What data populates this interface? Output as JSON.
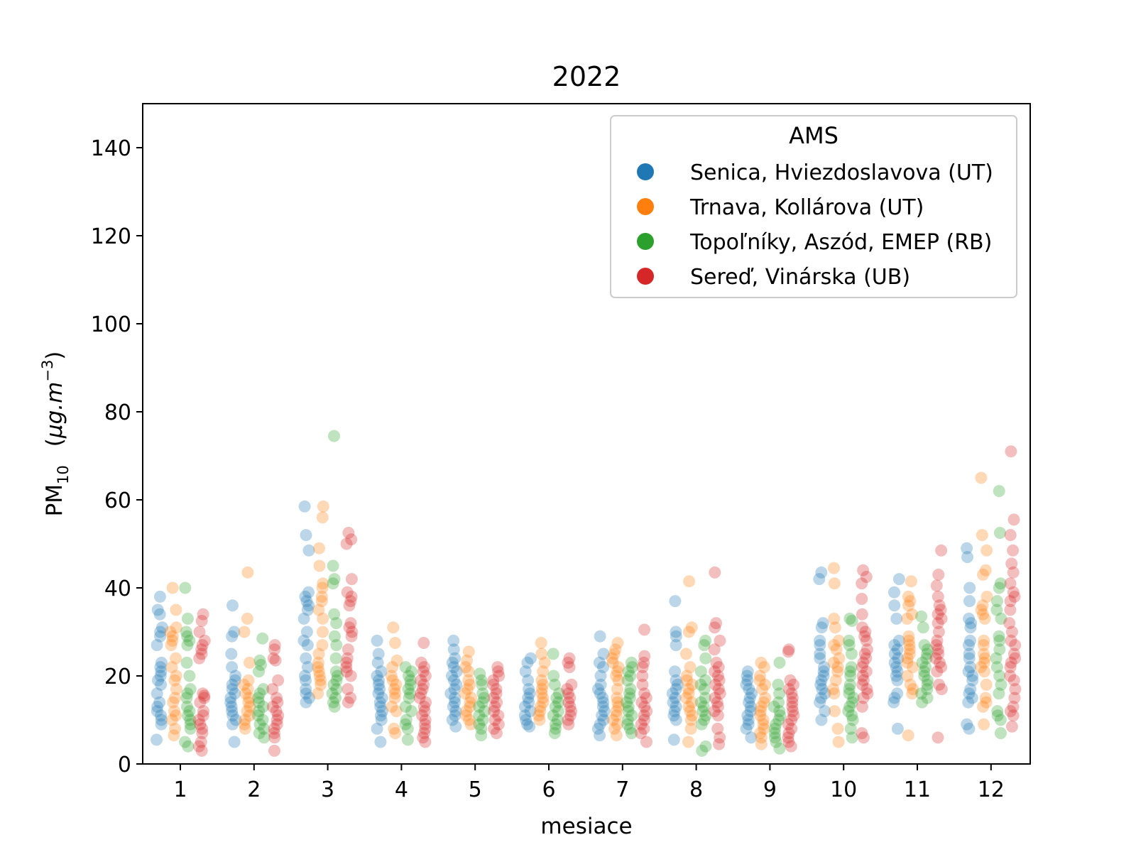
{
  "chart_data": {
    "type": "scatter",
    "title": "2022",
    "xlabel": "mesiace",
    "ylabel": {
      "main": "PM",
      "subscript": "10",
      "unit_open": "(",
      "unit_mu": "μ",
      "unit_body": "g.m",
      "unit_exp": "−3",
      "unit_close": ")"
    },
    "categories": [
      "1",
      "2",
      "3",
      "4",
      "5",
      "6",
      "7",
      "8",
      "9",
      "10",
      "11",
      "12"
    ],
    "ylim": [
      0,
      150
    ],
    "yticks": [
      0,
      20,
      40,
      60,
      80,
      100,
      120,
      140
    ],
    "grid": false,
    "legend": {
      "title": "AMS",
      "placement": "top-right"
    },
    "series": [
      {
        "name": "Senica, Hviezdoslavova (UT)",
        "color": "#1f77b4",
        "values": [
          [
            38,
            35,
            34,
            31,
            30,
            29,
            27,
            23,
            22,
            21,
            20,
            19,
            18,
            16,
            14,
            13,
            12,
            11,
            10,
            9,
            5.5
          ],
          [
            36,
            30,
            29,
            25,
            22,
            20,
            19,
            18,
            17,
            16,
            15,
            14,
            13,
            12,
            11,
            10,
            9,
            5
          ],
          [
            58.5,
            52,
            48.5,
            39,
            38,
            37,
            36,
            35,
            33,
            30,
            28,
            27,
            24,
            22,
            20,
            19,
            17,
            16,
            15,
            14
          ],
          [
            28,
            25,
            23,
            21,
            20,
            19,
            18,
            17,
            16,
            15,
            14,
            13,
            12,
            11,
            10,
            8,
            5
          ],
          [
            28,
            26,
            24,
            23,
            22,
            21,
            20,
            19,
            18,
            17,
            16,
            15,
            14,
            13,
            12,
            11,
            10,
            8.5
          ],
          [
            24,
            23,
            21,
            19,
            17,
            16,
            15,
            14,
            13,
            12,
            11,
            10,
            9,
            8.5
          ],
          [
            29,
            25,
            23,
            22,
            20,
            18,
            17,
            16,
            15,
            14,
            13,
            12,
            11,
            10,
            9,
            8,
            6.5
          ],
          [
            37,
            30,
            29,
            27,
            21,
            19,
            18,
            17,
            16,
            15,
            14,
            13,
            12,
            11,
            10,
            5.5
          ],
          [
            21,
            20,
            19,
            18,
            17,
            16,
            15,
            14,
            13,
            12,
            11,
            10,
            9,
            8,
            6
          ],
          [
            43.5,
            42,
            32,
            31,
            28,
            27,
            25,
            24,
            22,
            21,
            20,
            19,
            18,
            17,
            16,
            15,
            14,
            12,
            10
          ],
          [
            42,
            39,
            36,
            33,
            28,
            27,
            26,
            25,
            24,
            23,
            22,
            21,
            20,
            19,
            16,
            15,
            14,
            8
          ],
          [
            49,
            47,
            40,
            37,
            33,
            32,
            31,
            28,
            27,
            25,
            24,
            22,
            21,
            20,
            19,
            17,
            16,
            15,
            14,
            9,
            8
          ]
        ]
      },
      {
        "name": "Trnava, Kollárova (UT)",
        "color": "#ff7f0e",
        "values": [
          [
            40,
            35,
            31,
            30,
            29,
            28,
            27,
            24,
            22,
            20,
            19,
            17,
            15,
            14,
            12,
            11,
            10,
            8,
            6.5
          ],
          [
            43.5,
            33,
            30,
            23,
            19,
            18,
            17,
            16,
            15,
            14,
            13,
            12,
            11,
            10,
            9,
            8
          ],
          [
            58.5,
            56,
            49,
            45,
            41,
            40,
            38,
            37,
            35,
            33,
            30,
            27,
            25,
            23,
            22,
            21,
            20,
            19,
            18,
            16
          ],
          [
            31,
            27.5,
            23.5,
            22,
            20,
            19,
            18,
            17,
            16,
            15,
            13,
            12,
            8,
            7
          ],
          [
            25.5,
            23.5,
            22,
            21,
            19,
            18,
            17,
            16,
            15,
            14,
            13,
            12,
            11,
            10,
            9
          ],
          [
            27.5,
            25,
            23,
            21,
            19,
            18,
            17,
            16,
            15,
            14,
            13,
            12,
            11,
            10
          ],
          [
            27.5,
            26,
            25,
            24,
            23,
            22,
            21,
            20,
            19,
            17,
            15,
            14,
            13,
            12,
            11,
            10,
            9,
            8,
            6.5
          ],
          [
            41.5,
            31,
            30,
            25,
            22,
            20,
            19,
            18,
            17,
            16,
            15,
            14,
            13,
            12,
            11,
            10,
            8,
            5
          ],
          [
            23,
            22,
            20,
            19,
            18,
            17,
            15,
            14,
            13,
            12,
            11,
            10,
            9,
            8,
            7,
            6,
            4.5
          ],
          [
            44.5,
            41,
            33,
            31,
            28,
            27,
            26,
            24,
            23,
            22,
            21,
            19,
            17,
            16,
            12,
            8,
            5
          ],
          [
            41.5,
            38,
            37,
            36,
            34,
            33,
            29,
            28,
            27,
            26,
            25,
            24,
            23,
            22,
            20,
            18,
            17,
            16,
            6.5
          ],
          [
            65,
            52,
            48.5,
            44,
            43,
            38,
            36,
            35,
            34,
            33,
            28,
            27,
            25,
            24,
            23,
            22,
            21,
            18,
            15,
            14,
            13,
            9
          ]
        ]
      },
      {
        "name": "Topoľníky, Aszód, EMEP (RB)",
        "color": "#2ca02c",
        "values": [
          [
            40,
            33,
            30,
            29,
            28,
            27,
            23,
            20,
            17,
            16,
            15,
            13,
            12,
            11,
            10,
            9,
            8,
            5,
            4
          ],
          [
            28.5,
            23.5,
            22.5,
            21,
            17,
            16,
            15,
            14,
            13,
            12,
            11,
            10,
            9,
            8,
            7,
            6
          ],
          [
            74.5,
            45,
            42,
            41,
            34,
            32,
            29,
            27,
            24,
            21,
            20,
            19,
            18,
            17,
            16,
            15,
            14,
            13
          ],
          [
            22,
            21,
            20,
            19,
            18,
            17,
            16,
            15,
            13,
            12,
            10,
            9,
            8,
            5.5
          ],
          [
            20.5,
            19,
            18,
            16,
            15,
            14,
            13,
            12,
            11,
            10,
            9,
            8,
            6.5
          ],
          [
            25,
            20,
            18,
            16,
            15,
            14,
            13,
            12,
            11,
            10,
            9,
            8,
            7
          ],
          [
            23,
            22,
            21,
            20,
            19,
            17,
            16,
            15,
            14,
            13,
            12,
            11,
            10,
            9,
            8,
            7
          ],
          [
            28,
            27,
            24,
            21,
            19,
            18,
            17,
            15,
            14,
            13,
            12,
            11,
            10,
            9,
            4,
            3
          ],
          [
            23,
            18,
            16,
            14,
            13,
            12,
            11,
            10,
            9,
            8,
            7,
            6,
            5,
            3.5
          ],
          [
            33,
            32.5,
            28,
            27,
            25,
            22,
            21,
            20,
            18,
            17,
            16,
            15,
            14,
            13,
            12,
            11,
            10,
            8,
            6
          ],
          [
            33.5,
            31,
            27,
            26,
            25,
            24,
            23,
            22,
            21,
            20,
            19,
            18,
            17,
            16,
            15,
            14
          ],
          [
            62,
            52.5,
            41,
            40,
            37,
            35,
            33,
            29,
            28,
            26,
            24,
            22,
            20,
            18,
            16,
            12,
            11,
            10,
            7
          ]
        ]
      },
      {
        "name": "Sereď, Vinárska (UB)",
        "color": "#d62728",
        "values": [
          [
            34,
            32.5,
            30,
            28,
            27,
            26,
            25,
            24,
            16,
            15.5,
            15,
            14,
            12,
            11,
            10,
            9,
            8,
            7,
            5,
            4,
            3
          ],
          [
            27,
            26,
            24,
            23.5,
            19,
            17,
            15,
            14,
            13,
            12,
            11,
            10,
            9,
            8,
            7,
            6,
            3
          ],
          [
            52.5,
            51,
            50,
            42,
            39,
            38,
            37,
            36,
            32,
            31,
            30,
            29,
            26,
            24,
            23,
            22,
            21,
            20,
            17,
            15,
            14
          ],
          [
            27.5,
            23,
            22,
            21,
            20,
            19,
            18,
            17,
            16,
            15,
            14,
            13,
            12,
            11,
            10,
            9,
            8,
            7,
            6,
            5
          ],
          [
            22,
            21,
            20,
            19,
            18,
            17,
            16,
            15,
            14,
            13,
            12,
            11,
            10,
            9,
            8,
            7
          ],
          [
            24,
            23,
            22,
            18,
            17,
            16,
            15,
            14,
            13,
            12,
            11,
            10,
            9
          ],
          [
            30.5,
            24.5,
            23,
            22,
            20,
            18,
            16,
            15,
            14,
            13,
            12,
            11,
            10,
            9,
            8,
            7,
            5
          ],
          [
            43.5,
            32,
            31,
            28,
            26,
            23,
            22,
            21,
            20,
            19,
            18,
            17,
            16,
            15,
            14,
            13,
            12,
            11,
            8,
            6,
            4.5
          ],
          [
            26,
            25.5,
            19,
            18,
            17,
            16,
            15,
            14,
            13,
            12,
            11,
            10,
            9,
            8,
            7,
            6,
            5,
            4
          ],
          [
            44,
            42.5,
            41,
            37.5,
            34,
            31,
            30,
            29,
            28,
            26,
            25,
            24,
            23,
            22,
            21,
            20,
            19,
            18,
            17,
            16,
            15,
            13,
            7,
            6
          ],
          [
            48.5,
            43,
            40.5,
            38,
            36,
            35,
            34,
            33,
            32,
            30,
            28,
            27,
            26,
            25,
            24,
            23,
            22,
            21,
            18,
            17,
            6
          ],
          [
            71,
            55.5,
            52,
            48.5,
            45.5,
            43.5,
            41,
            39,
            38,
            37,
            35,
            32,
            30,
            28,
            27,
            25,
            24,
            23,
            22,
            20,
            19,
            17,
            15,
            13,
            12,
            11,
            8.5
          ]
        ]
      }
    ]
  }
}
